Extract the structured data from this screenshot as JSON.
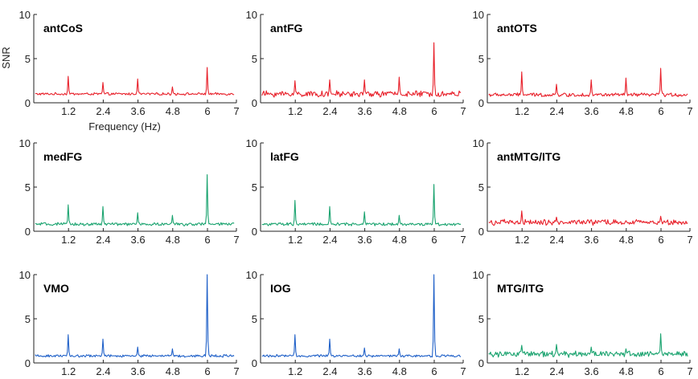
{
  "chart_data": {
    "type": "line",
    "layout": "3x3 grid of spectra",
    "xlim": [
      0,
      7
    ],
    "ylim": [
      0,
      10
    ],
    "xticks": [
      "1.2",
      "2.4",
      "3.6",
      "4.8",
      "6",
      "7"
    ],
    "xtick_values": [
      1.2,
      2.4,
      3.6,
      4.8,
      6,
      7
    ],
    "yticks": [
      "0",
      "5",
      "10"
    ],
    "ytick_values": [
      0,
      5,
      10
    ],
    "xlabel": "Frequency (Hz)",
    "ylabel": "SNR",
    "panels": [
      {
        "label": "antCoS",
        "color": "#e8202a",
        "baseline": 1.0,
        "noise": 0.12,
        "peaks": [
          {
            "x": 1.2,
            "y": 3.0
          },
          {
            "x": 2.4,
            "y": 2.3
          },
          {
            "x": 3.6,
            "y": 2.7
          },
          {
            "x": 4.8,
            "y": 1.8
          },
          {
            "x": 6.0,
            "y": 4.0
          }
        ]
      },
      {
        "label": "antFG",
        "color": "#e8202a",
        "baseline": 1.0,
        "noise": 0.3,
        "peaks": [
          {
            "x": 1.2,
            "y": 2.5
          },
          {
            "x": 2.4,
            "y": 2.6
          },
          {
            "x": 3.6,
            "y": 2.6
          },
          {
            "x": 4.8,
            "y": 2.9
          },
          {
            "x": 6.0,
            "y": 6.8
          }
        ]
      },
      {
        "label": "antOTS",
        "color": "#e8202a",
        "baseline": 0.9,
        "noise": 0.18,
        "peaks": [
          {
            "x": 1.2,
            "y": 3.5
          },
          {
            "x": 2.4,
            "y": 2.1
          },
          {
            "x": 3.6,
            "y": 2.6
          },
          {
            "x": 4.8,
            "y": 2.8
          },
          {
            "x": 6.0,
            "y": 3.9
          }
        ]
      },
      {
        "label": "medFG",
        "color": "#1aa36f",
        "baseline": 0.8,
        "noise": 0.15,
        "peaks": [
          {
            "x": 1.2,
            "y": 3.0
          },
          {
            "x": 2.4,
            "y": 2.8
          },
          {
            "x": 3.6,
            "y": 2.1
          },
          {
            "x": 4.8,
            "y": 1.8
          },
          {
            "x": 6.0,
            "y": 6.4
          }
        ]
      },
      {
        "label": "latFG",
        "color": "#1aa36f",
        "baseline": 0.8,
        "noise": 0.15,
        "peaks": [
          {
            "x": 1.2,
            "y": 3.5
          },
          {
            "x": 2.4,
            "y": 2.8
          },
          {
            "x": 3.6,
            "y": 2.2
          },
          {
            "x": 4.8,
            "y": 1.8
          },
          {
            "x": 6.0,
            "y": 5.3
          }
        ]
      },
      {
        "label": "antMTG/ITG",
        "color": "#e8202a",
        "baseline": 1.0,
        "noise": 0.28,
        "peaks": [
          {
            "x": 1.2,
            "y": 2.3
          },
          {
            "x": 2.4,
            "y": 1.6
          },
          {
            "x": 3.6,
            "y": 1.3
          },
          {
            "x": 4.8,
            "y": 1.2
          },
          {
            "x": 6.0,
            "y": 1.7
          }
        ]
      },
      {
        "label": "VMO",
        "color": "#1f60c8",
        "baseline": 0.8,
        "noise": 0.12,
        "peaks": [
          {
            "x": 1.2,
            "y": 3.2
          },
          {
            "x": 2.4,
            "y": 2.7
          },
          {
            "x": 3.6,
            "y": 1.8
          },
          {
            "x": 4.8,
            "y": 1.6
          },
          {
            "x": 6.0,
            "y": 10.0
          }
        ]
      },
      {
        "label": "IOG",
        "color": "#1f60c8",
        "baseline": 0.8,
        "noise": 0.12,
        "peaks": [
          {
            "x": 1.2,
            "y": 3.2
          },
          {
            "x": 2.4,
            "y": 2.7
          },
          {
            "x": 3.6,
            "y": 1.7
          },
          {
            "x": 4.8,
            "y": 1.6
          },
          {
            "x": 6.0,
            "y": 10.0
          }
        ]
      },
      {
        "label": "MTG/ITG",
        "color": "#1aa36f",
        "baseline": 1.0,
        "noise": 0.3,
        "peaks": [
          {
            "x": 1.2,
            "y": 2.0
          },
          {
            "x": 2.4,
            "y": 2.1
          },
          {
            "x": 3.6,
            "y": 1.8
          },
          {
            "x": 4.8,
            "y": 1.6
          },
          {
            "x": 6.0,
            "y": 3.3
          }
        ]
      }
    ]
  }
}
